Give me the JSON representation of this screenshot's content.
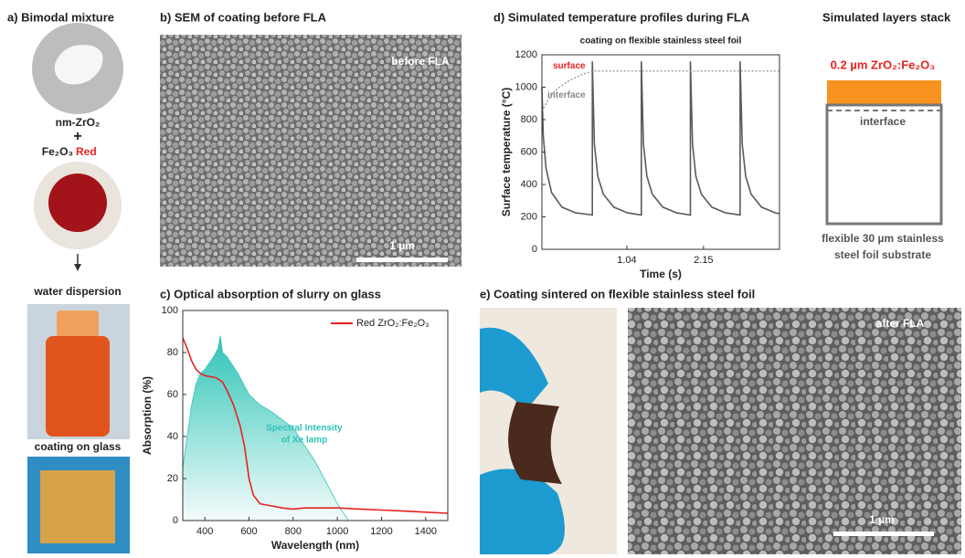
{
  "panels": {
    "a": {
      "title": "a) Bimodal mixture",
      "zro2": "nm-ZrO₂",
      "plus": "+",
      "fe2o3": "Fe₂O₃",
      "red": "Red",
      "water": "water dispersion",
      "glass": "coating on glass"
    },
    "b": {
      "title": "b) SEM of coating before FLA",
      "label": "before FLA",
      "scale": "1 µm"
    },
    "layers": {
      "title": "Simulated layers stack",
      "coating": "0.2 µm ZrO₂:Fe₂O₃",
      "interface": "interface",
      "substrate": [
        "flexible 30 µm stainless",
        "steel foil substrate"
      ]
    },
    "e": {
      "title": "e) Coating sintered on flexible stainless steel foil",
      "label": "after FLA",
      "scale": "1 µm"
    }
  },
  "chart_data": [
    {
      "type": "line",
      "title": "d) Simulated temperature profiles during FLA",
      "subtitle": "coating on flexible stainless steel foil",
      "x_label": "Time (s)",
      "y_label": "Surface temperature (°C)",
      "xlim": [
        -0.19,
        3.25
      ],
      "ylim": [
        0,
        1200
      ],
      "xticks": [
        1.04,
        2.15
      ],
      "yticks": [
        0,
        200,
        400,
        600,
        800,
        1000,
        1200
      ],
      "series": [
        {
          "name": "surface",
          "color": "#5a5a5a",
          "x": [
            -0.19,
            -0.17,
            -0.13,
            -0.05,
            0.1,
            0.3,
            0.54,
            0.54,
            0.57,
            0.62,
            0.7,
            0.85,
            1.05,
            1.25,
            1.25,
            1.28,
            1.33,
            1.41,
            1.56,
            1.76,
            1.96,
            1.96,
            1.99,
            2.04,
            2.12,
            2.27,
            2.47,
            2.68,
            2.68,
            2.71,
            2.76,
            2.84,
            2.99,
            3.19,
            3.25
          ],
          "values": [
            1000,
            700,
            500,
            350,
            260,
            225,
            212,
            1160,
            650,
            450,
            340,
            260,
            225,
            212,
            1160,
            650,
            450,
            340,
            260,
            225,
            212,
            1160,
            650,
            450,
            340,
            260,
            225,
            212,
            1160,
            650,
            450,
            340,
            260,
            225,
            220
          ]
        },
        {
          "name": "interface",
          "color": "#8a8a8a",
          "dashed": true,
          "x": [
            -0.19,
            -0.1,
            0,
            0.2,
            0.4,
            0.54,
            1.0,
            2.0,
            3.25
          ],
          "values": [
            850,
            920,
            980,
            1040,
            1080,
            1100,
            1100,
            1100,
            1100
          ]
        }
      ]
    },
    {
      "type": "line",
      "title": "c) Optical absorption of slurry on glass",
      "x_label": "Wavelength (nm)",
      "y_label": "Absorption (%)",
      "xlim": [
        300,
        1500
      ],
      "ylim": [
        0,
        100
      ],
      "xticks": [
        400,
        600,
        800,
        1000,
        1200,
        1400
      ],
      "yticks": [
        0,
        20,
        40,
        60,
        80,
        100
      ],
      "legend": "upper right",
      "annotation": [
        "Spectral Intensity",
        "of Xe lamp"
      ],
      "series": [
        {
          "type": "area",
          "color": "#2ec4b6",
          "x": [
            300,
            320,
            340,
            360,
            380,
            400,
            420,
            440,
            460,
            470,
            480,
            500,
            550,
            600,
            650,
            700,
            750,
            800,
            850,
            900,
            950,
            1000,
            1050
          ],
          "values": [
            25,
            40,
            55,
            65,
            70,
            72,
            75,
            78,
            82,
            88,
            80,
            78,
            70,
            60,
            55,
            52,
            48,
            44,
            36,
            28,
            18,
            8,
            0
          ]
        },
        {
          "name": "Red ZrO₂:Fe₂O₃",
          "color": "#e8211f",
          "x": [
            300,
            320,
            340,
            360,
            380,
            400,
            450,
            480,
            500,
            530,
            560,
            580,
            600,
            620,
            650,
            700,
            750,
            800,
            850,
            900,
            1000,
            1100,
            1200,
            1300,
            1400,
            1500
          ],
          "values": [
            87,
            82,
            76,
            72,
            70,
            69,
            68,
            66,
            62,
            55,
            45,
            35,
            20,
            12,
            8,
            7,
            6,
            5.5,
            6,
            6,
            6,
            5.5,
            5,
            4.5,
            4,
            3.5
          ]
        }
      ]
    }
  ]
}
